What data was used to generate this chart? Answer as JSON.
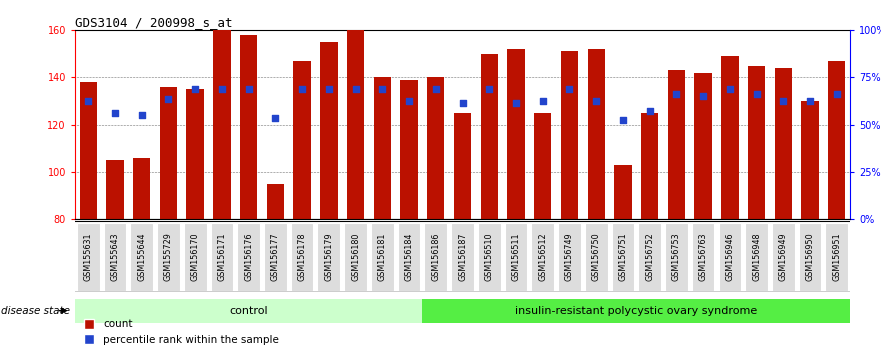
{
  "title": "GDS3104 / 200998_s_at",
  "samples": [
    "GSM155631",
    "GSM155643",
    "GSM155644",
    "GSM155729",
    "GSM156170",
    "GSM156171",
    "GSM156176",
    "GSM156177",
    "GSM156178",
    "GSM156179",
    "GSM156180",
    "GSM156181",
    "GSM156184",
    "GSM156186",
    "GSM156187",
    "GSM156510",
    "GSM156511",
    "GSM156512",
    "GSM156749",
    "GSM156750",
    "GSM156751",
    "GSM156752",
    "GSM156753",
    "GSM156763",
    "GSM156946",
    "GSM156948",
    "GSM156949",
    "GSM156950",
    "GSM156951"
  ],
  "count_values": [
    138,
    105,
    106,
    136,
    135,
    160,
    158,
    95,
    147,
    155,
    160,
    140,
    139,
    140,
    125,
    150,
    152,
    125,
    151,
    152,
    103,
    125,
    143,
    142,
    149,
    145,
    144,
    130,
    147
  ],
  "percentile_values": [
    130,
    125,
    124,
    131,
    135,
    135,
    135,
    123,
    135,
    135,
    135,
    135,
    130,
    135,
    129,
    135,
    129,
    130,
    135,
    130,
    122,
    126,
    133,
    132,
    135,
    133,
    130,
    130,
    133
  ],
  "control_count": 13,
  "disease_count": 16,
  "ylim_left": [
    80,
    160
  ],
  "ylim_right": [
    0,
    100
  ],
  "yticks_left": [
    80,
    100,
    120,
    140,
    160
  ],
  "yticks_right": [
    0,
    25,
    50,
    75,
    100
  ],
  "ytick_labels_right": [
    "0%",
    "25%",
    "50%",
    "75%",
    "100%"
  ],
  "bar_color": "#bb1100",
  "dot_color": "#2244cc",
  "control_bg": "#ccffcc",
  "disease_bg": "#55ee44",
  "sample_label_bg": "#dddddd",
  "control_label": "control",
  "disease_label": "insulin-resistant polycystic ovary syndrome",
  "disease_state_label": "disease state",
  "legend_count": "count",
  "legend_percentile": "percentile rank within the sample",
  "title_fontsize": 9,
  "tick_fontsize": 7,
  "bar_width": 0.65
}
